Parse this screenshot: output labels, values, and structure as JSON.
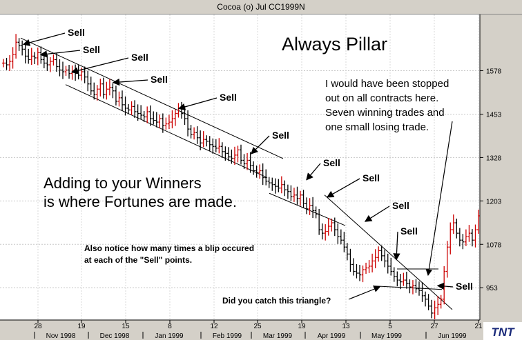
{
  "window": {
    "title": "Cocoa (o) Jul CC1999N"
  },
  "chart_data": {
    "type": "ohlc",
    "title": "Cocoa (o) Jul CC1999N",
    "ylim": [
      860,
      1740
    ],
    "y_ticks": [
      953,
      1078,
      1203,
      1328,
      1453,
      1578
    ],
    "x_day_ticks": [
      "28",
      "19",
      "15",
      "8",
      "12",
      "25",
      "19",
      "13",
      "5",
      "27",
      "21"
    ],
    "x_month_labels": [
      "Nov 1998",
      "Dec 1998",
      "Jan 1999",
      "Feb 1999",
      "Mar 1999",
      "Apr 1999",
      "May 1999",
      "Jun 1999"
    ],
    "closes": [
      1600,
      1595,
      1605,
      1625,
      1660,
      1650,
      1640,
      1620,
      1610,
      1620,
      1615,
      1630,
      1610,
      1600,
      1595,
      1605,
      1610,
      1590,
      1580,
      1575,
      1580,
      1570,
      1575,
      1570,
      1565,
      1575,
      1560,
      1540,
      1520,
      1510,
      1525,
      1540,
      1510,
      1525,
      1530,
      1520,
      1490,
      1500,
      1480,
      1470,
      1465,
      1475,
      1460,
      1455,
      1450,
      1445,
      1460,
      1440,
      1435,
      1430,
      1440,
      1420,
      1425,
      1430,
      1440,
      1455,
      1470,
      1455,
      1440,
      1410,
      1395,
      1400,
      1385,
      1370,
      1380,
      1375,
      1365,
      1360,
      1355,
      1360,
      1345,
      1340,
      1330,
      1325,
      1335,
      1350,
      1320,
      1310,
      1320,
      1305,
      1290,
      1285,
      1290,
      1270,
      1260,
      1255,
      1250,
      1245,
      1240,
      1250,
      1235,
      1230,
      1215,
      1220,
      1210,
      1220,
      1195,
      1180,
      1190,
      1175,
      1165,
      1120,
      1110,
      1115,
      1130,
      1140,
      1120,
      1100,
      1090,
      1070,
      1050,
      1020,
      1000,
      995,
      990,
      1005,
      1010,
      1015,
      1030,
      1040,
      1060,
      1045,
      1030,
      1015,
      1000,
      985,
      975,
      970,
      975,
      965,
      955,
      960,
      950,
      945,
      930,
      920,
      900,
      880,
      895,
      905,
      920,
      1000,
      1070,
      1120,
      1140,
      1110,
      1090,
      1085,
      1100,
      1110,
      1090,
      1120,
      1160
    ],
    "channel_lines": [
      {
        "x": [
          30,
          410
        ],
        "y": [
          1672,
          1325
        ]
      },
      {
        "x": [
          95,
          387
        ],
        "y": [
          1538,
          1270
        ]
      },
      {
        "x": [
          390,
          500
        ],
        "y": [
          1225,
          1132
        ]
      },
      {
        "x": [
          470,
          655
        ],
        "y": [
          1220,
          890
        ]
      },
      {
        "x": [
          575,
          635
        ],
        "y": [
          1007,
          1007
        ]
      },
      {
        "x": [
          540,
          640
        ],
        "y": [
          958,
          948
        ]
      }
    ],
    "sell_points": [
      {
        "label": "Sell",
        "price": 1650
      },
      {
        "label": "Sell",
        "price": 1620
      },
      {
        "label": "Sell",
        "price": 1570
      },
      {
        "label": "Sell",
        "price": 1540
      },
      {
        "label": "Sell",
        "price": 1465
      },
      {
        "label": "Sell",
        "price": 1335
      },
      {
        "label": "Sell",
        "price": 1260
      },
      {
        "label": "Sell",
        "price": 1210
      },
      {
        "label": "Sell",
        "price": 1140
      },
      {
        "label": "Sell",
        "price": 1030
      },
      {
        "label": "Sell",
        "price": 955
      }
    ],
    "annotations": {
      "headline": "Always Pillar",
      "stop_note": [
        "I would have been stopped",
        "out on all contracts here.",
        "Seven winning trades and",
        "one small losing trade."
      ],
      "winners": [
        "Adding to your Winners",
        "is where Fortunes are made."
      ],
      "blip": [
        "Also notice how many times a blip occured",
        "at each of the \"Sell\" points."
      ],
      "triangle": "Did you catch this triangle?"
    },
    "logo": "TNT"
  }
}
